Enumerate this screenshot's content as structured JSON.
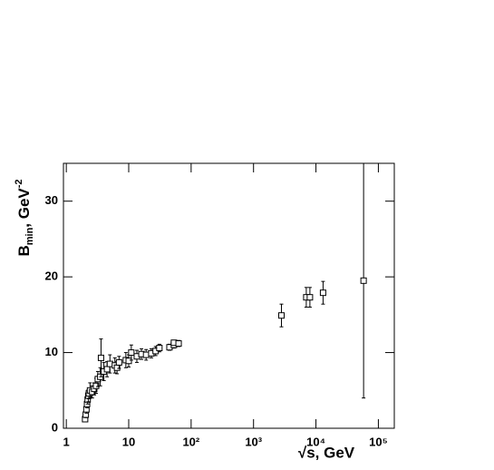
{
  "chart_data": {
    "type": "scatter",
    "x_label": "√s, GeV",
    "y_label": {
      "main": "B",
      "sub": "min",
      "rest": ", GeV",
      "sup": "-2"
    },
    "x": [
      2.0,
      2.05,
      2.1,
      2.15,
      2.2,
      2.25,
      2.3,
      2.4,
      2.6,
      2.8,
      3.0,
      3.2,
      3.5,
      3.6,
      4.0,
      4.5,
      5.0,
      6.0,
      6.5,
      7.0,
      9.0,
      10.0,
      11.0,
      13.5,
      16.0,
      19.0,
      23.0,
      27.0,
      31.0,
      45.0,
      53.0,
      53.0,
      63.0,
      2800,
      7000,
      8000,
      13000,
      58000
    ],
    "values": [
      1.2,
      1.8,
      2.5,
      3.2,
      3.8,
      4.3,
      4.6,
      5.0,
      4.8,
      5.2,
      5.6,
      6.5,
      6.8,
      9.3,
      7.5,
      7.8,
      8.5,
      8.3,
      8.0,
      8.7,
      9.0,
      8.9,
      10.0,
      9.5,
      9.8,
      9.7,
      9.9,
      10.2,
      10.6,
      10.7,
      11.0,
      11.3,
      11.2,
      14.9,
      17.3,
      17.3,
      17.9,
      19.5
    ],
    "errors": [
      0.3,
      0.4,
      0.5,
      0.5,
      0.6,
      0.8,
      0.7,
      1.0,
      0.8,
      0.8,
      1.0,
      1.0,
      1.2,
      2.5,
      1.2,
      1.0,
      1.2,
      1.0,
      0.8,
      0.8,
      1.0,
      0.8,
      1.0,
      0.8,
      0.7,
      0.7,
      0.6,
      0.6,
      0.5,
      0.4,
      0.4,
      0.3,
      0.4,
      1.5,
      1.3,
      1.3,
      1.5,
      15.5
    ],
    "color": "#000000",
    "log_x": true,
    "xlim": [
      0.9,
      180000
    ],
    "xticks": [
      1,
      10,
      {
        "value": 100,
        "label": "10²"
      },
      {
        "value": 1000,
        "label": "10³"
      },
      {
        "value": 10000,
        "label": "10⁴"
      },
      {
        "value": 100000,
        "label": "10⁵"
      }
    ],
    "ylim": [
      0,
      35
    ],
    "yticks": [
      0,
      10,
      20,
      30
    ]
  }
}
